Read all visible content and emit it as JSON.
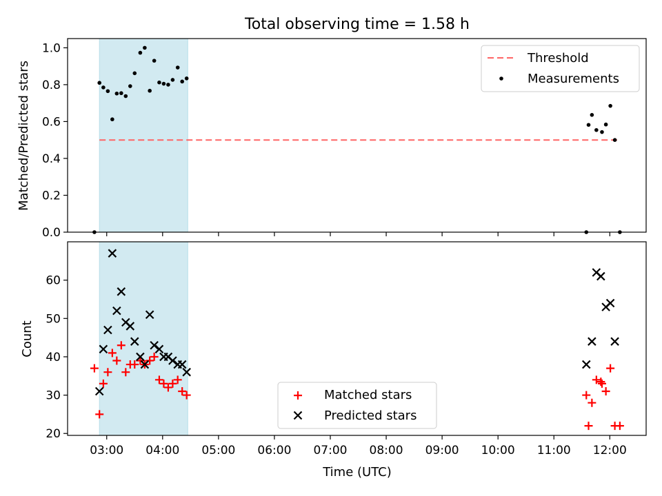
{
  "chart_data": {
    "title": "Total observing time = 1.58 h",
    "xlabel": "Time (UTC)",
    "x_units": "hours UTC",
    "xlim": [
      2.3,
      12.65
    ],
    "xticks": [
      {
        "value": 3,
        "label": "03:00"
      },
      {
        "value": 4,
        "label": "04:00"
      },
      {
        "value": 5,
        "label": "05:00"
      },
      {
        "value": 6,
        "label": "06:00"
      },
      {
        "value": 7,
        "label": "07:00"
      },
      {
        "value": 8,
        "label": "08:00"
      },
      {
        "value": 9,
        "label": "09:00"
      },
      {
        "value": 10,
        "label": "10:00"
      },
      {
        "value": 11,
        "label": "11:00"
      },
      {
        "value": 12,
        "label": "12:00"
      }
    ],
    "shaded_span": {
      "x0": 2.87,
      "x1": 4.45,
      "color": "#add8e6"
    },
    "panels": [
      {
        "type": "scatter",
        "ylabel": "Matched/Predicted stars",
        "ylim": [
          0,
          1.05
        ],
        "yticks": [
          "0.0",
          "0.2",
          "0.4",
          "0.6",
          "0.8",
          "1.0"
        ],
        "ytick_values": [
          0,
          0.2,
          0.4,
          0.6,
          0.8,
          1.0
        ],
        "legend": {
          "position": "upper right",
          "entries": [
            "Threshold",
            "Measurements"
          ]
        },
        "threshold": {
          "name": "Threshold",
          "y": 0.5,
          "x0": 2.87,
          "x1": 12.13,
          "color": "#ff6464"
        },
        "series": [
          {
            "name": "Measurements",
            "color": "#000000",
            "marker": "dot",
            "x": [
              2.78,
              2.87,
              2.94,
              3.02,
              3.1,
              3.18,
              3.26,
              3.34,
              3.42,
              3.5,
              3.6,
              3.68,
              3.77,
              3.85,
              3.94,
              4.02,
              4.1,
              4.18,
              4.27,
              4.35,
              4.43,
              11.58,
              11.62,
              11.68,
              11.76,
              11.86,
              11.93,
              12.01,
              12.09,
              12.18
            ],
            "y": [
              0.0,
              0.81,
              0.785,
              0.765,
              0.612,
              0.752,
              0.754,
              0.738,
              0.792,
              0.862,
              0.973,
              1.0,
              0.767,
              0.93,
              0.812,
              0.805,
              0.8,
              0.826,
              0.893,
              0.817,
              0.834,
              0.0,
              0.582,
              0.636,
              0.554,
              0.543,
              0.584,
              0.685,
              0.5,
              0.0
            ]
          }
        ]
      },
      {
        "type": "scatter",
        "ylabel": "Count",
        "ylim": [
          19.5,
          70
        ],
        "yticks": [
          "20",
          "30",
          "40",
          "50",
          "60"
        ],
        "ytick_values": [
          20,
          30,
          40,
          50,
          60
        ],
        "legend": {
          "position": "lower center",
          "entries": [
            "Matched stars",
            "Predicted stars"
          ]
        },
        "series": [
          {
            "name": "Matched stars",
            "color": "#ff0000",
            "marker": "plus",
            "x": [
              2.78,
              2.87,
              2.94,
              3.02,
              3.1,
              3.18,
              3.26,
              3.34,
              3.42,
              3.5,
              3.6,
              3.68,
              3.77,
              3.85,
              3.94,
              4.02,
              4.1,
              4.18,
              4.27,
              4.35,
              4.43,
              11.58,
              11.62,
              11.68,
              11.76,
              11.84,
              11.86,
              11.93,
              12.01,
              12.09,
              12.18
            ],
            "y": [
              37,
              25,
              33,
              36,
              41,
              39,
              43,
              36,
              38,
              38,
              39,
              38,
              39,
              40,
              34,
              33,
              32,
              33,
              34,
              31,
              30,
              30,
              22,
              28,
              34,
              33.5,
              33,
              31,
              37,
              22,
              22
            ]
          },
          {
            "name": "Predicted stars",
            "color": "#000000",
            "marker": "x",
            "x": [
              2.87,
              2.94,
              3.02,
              3.1,
              3.18,
              3.26,
              3.34,
              3.42,
              3.5,
              3.6,
              3.68,
              3.77,
              3.85,
              3.94,
              4.02,
              4.1,
              4.18,
              4.27,
              4.35,
              4.43,
              11.58,
              11.68,
              11.76,
              11.84,
              11.93,
              12.01,
              12.09
            ],
            "y": [
              31,
              42,
              47,
              67,
              52,
              57,
              49,
              48,
              44,
              40,
              38,
              51,
              43,
              42,
              40,
              40,
              39,
              38,
              38,
              36,
              38,
              44,
              62,
              61,
              53,
              54,
              44
            ]
          }
        ]
      }
    ]
  }
}
